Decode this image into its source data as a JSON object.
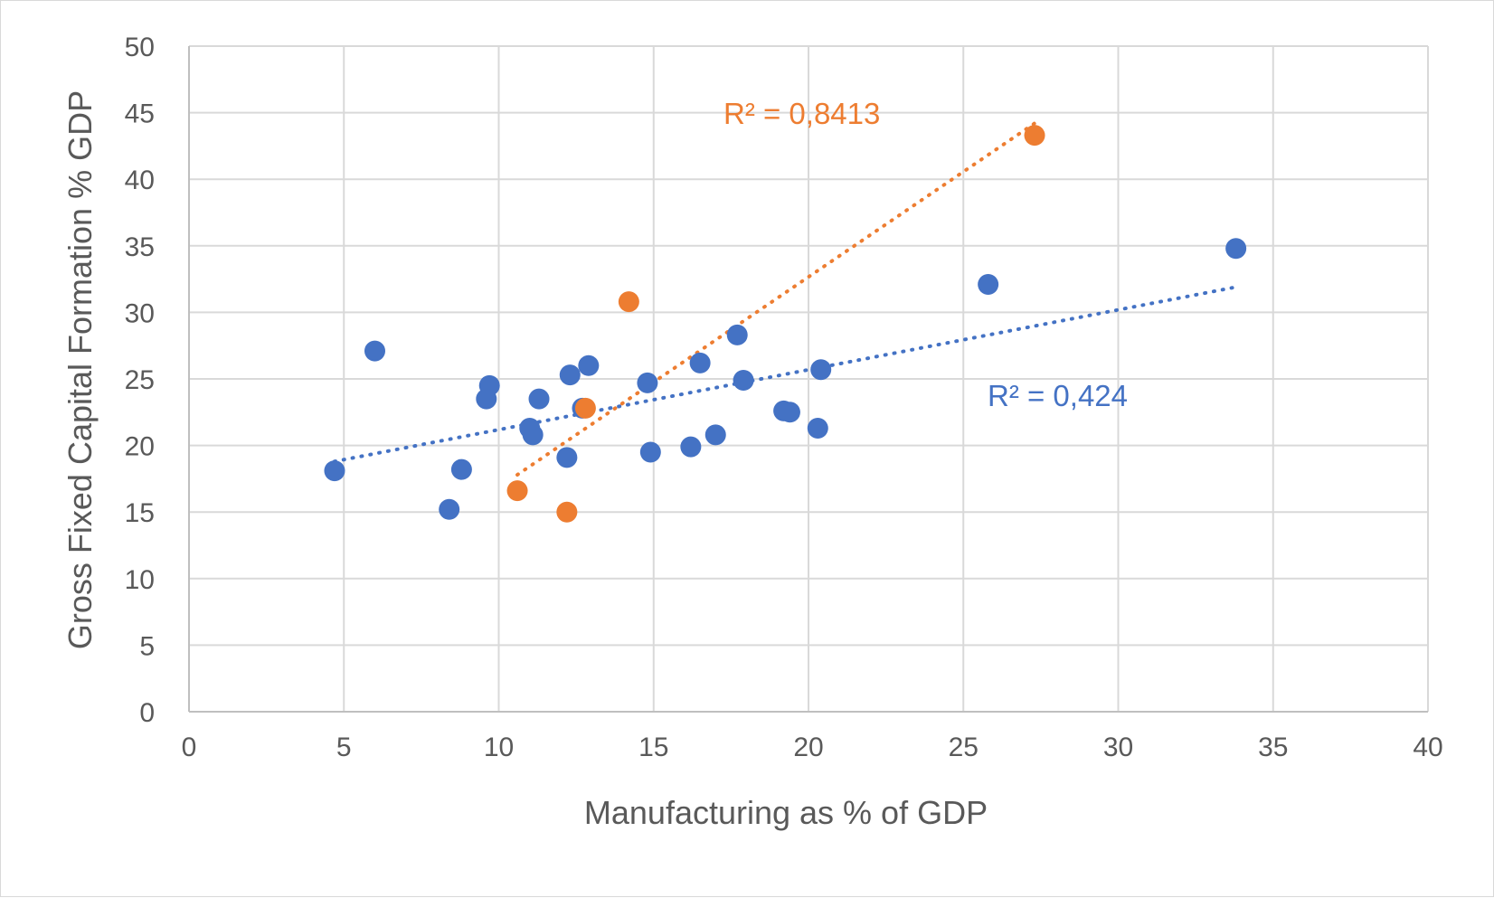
{
  "chart_data": {
    "type": "scatter",
    "title": "",
    "xlabel": "Manufacturing as % of GDP",
    "ylabel": "Gross Fixed Capital Formation % GDP",
    "xlim": [
      0,
      40
    ],
    "ylim": [
      0,
      50
    ],
    "x_ticks": [
      0,
      5,
      10,
      15,
      20,
      25,
      30,
      35,
      40
    ],
    "y_ticks": [
      0,
      5,
      10,
      15,
      20,
      25,
      30,
      35,
      40,
      45,
      50
    ],
    "grid": true,
    "legend": "none",
    "series": [
      {
        "color": "#4472c4",
        "points": [
          [
            4.7,
            18.1
          ],
          [
            6.0,
            27.1
          ],
          [
            8.4,
            15.2
          ],
          [
            8.8,
            18.2
          ],
          [
            9.6,
            23.5
          ],
          [
            9.7,
            24.5
          ],
          [
            11.0,
            21.3
          ],
          [
            11.1,
            20.8
          ],
          [
            11.3,
            23.5
          ],
          [
            12.2,
            19.1
          ],
          [
            12.3,
            25.3
          ],
          [
            12.7,
            22.8
          ],
          [
            12.9,
            26.0
          ],
          [
            14.8,
            24.7
          ],
          [
            14.9,
            19.5
          ],
          [
            16.2,
            19.9
          ],
          [
            16.5,
            26.2
          ],
          [
            17.0,
            20.8
          ],
          [
            17.7,
            28.3
          ],
          [
            17.9,
            24.9
          ],
          [
            19.2,
            22.6
          ],
          [
            19.4,
            22.5
          ],
          [
            20.3,
            21.3
          ],
          [
            20.4,
            25.7
          ],
          [
            25.8,
            32.1
          ],
          [
            33.8,
            34.8
          ]
        ],
        "trendline": {
          "x": [
            4.7,
            33.8
          ],
          "y": [
            18.8,
            31.9
          ],
          "r2_label": "R² = 0,424"
        }
      },
      {
        "color": "#ed7d31",
        "points": [
          [
            10.6,
            16.6
          ],
          [
            12.2,
            15.0
          ],
          [
            12.8,
            22.8
          ],
          [
            14.2,
            30.8
          ],
          [
            27.3,
            43.3
          ]
        ],
        "trendline": {
          "x": [
            10.6,
            27.3
          ],
          "y": [
            17.8,
            44.2
          ],
          "r2_label": "R² = 0,8413"
        }
      }
    ]
  }
}
